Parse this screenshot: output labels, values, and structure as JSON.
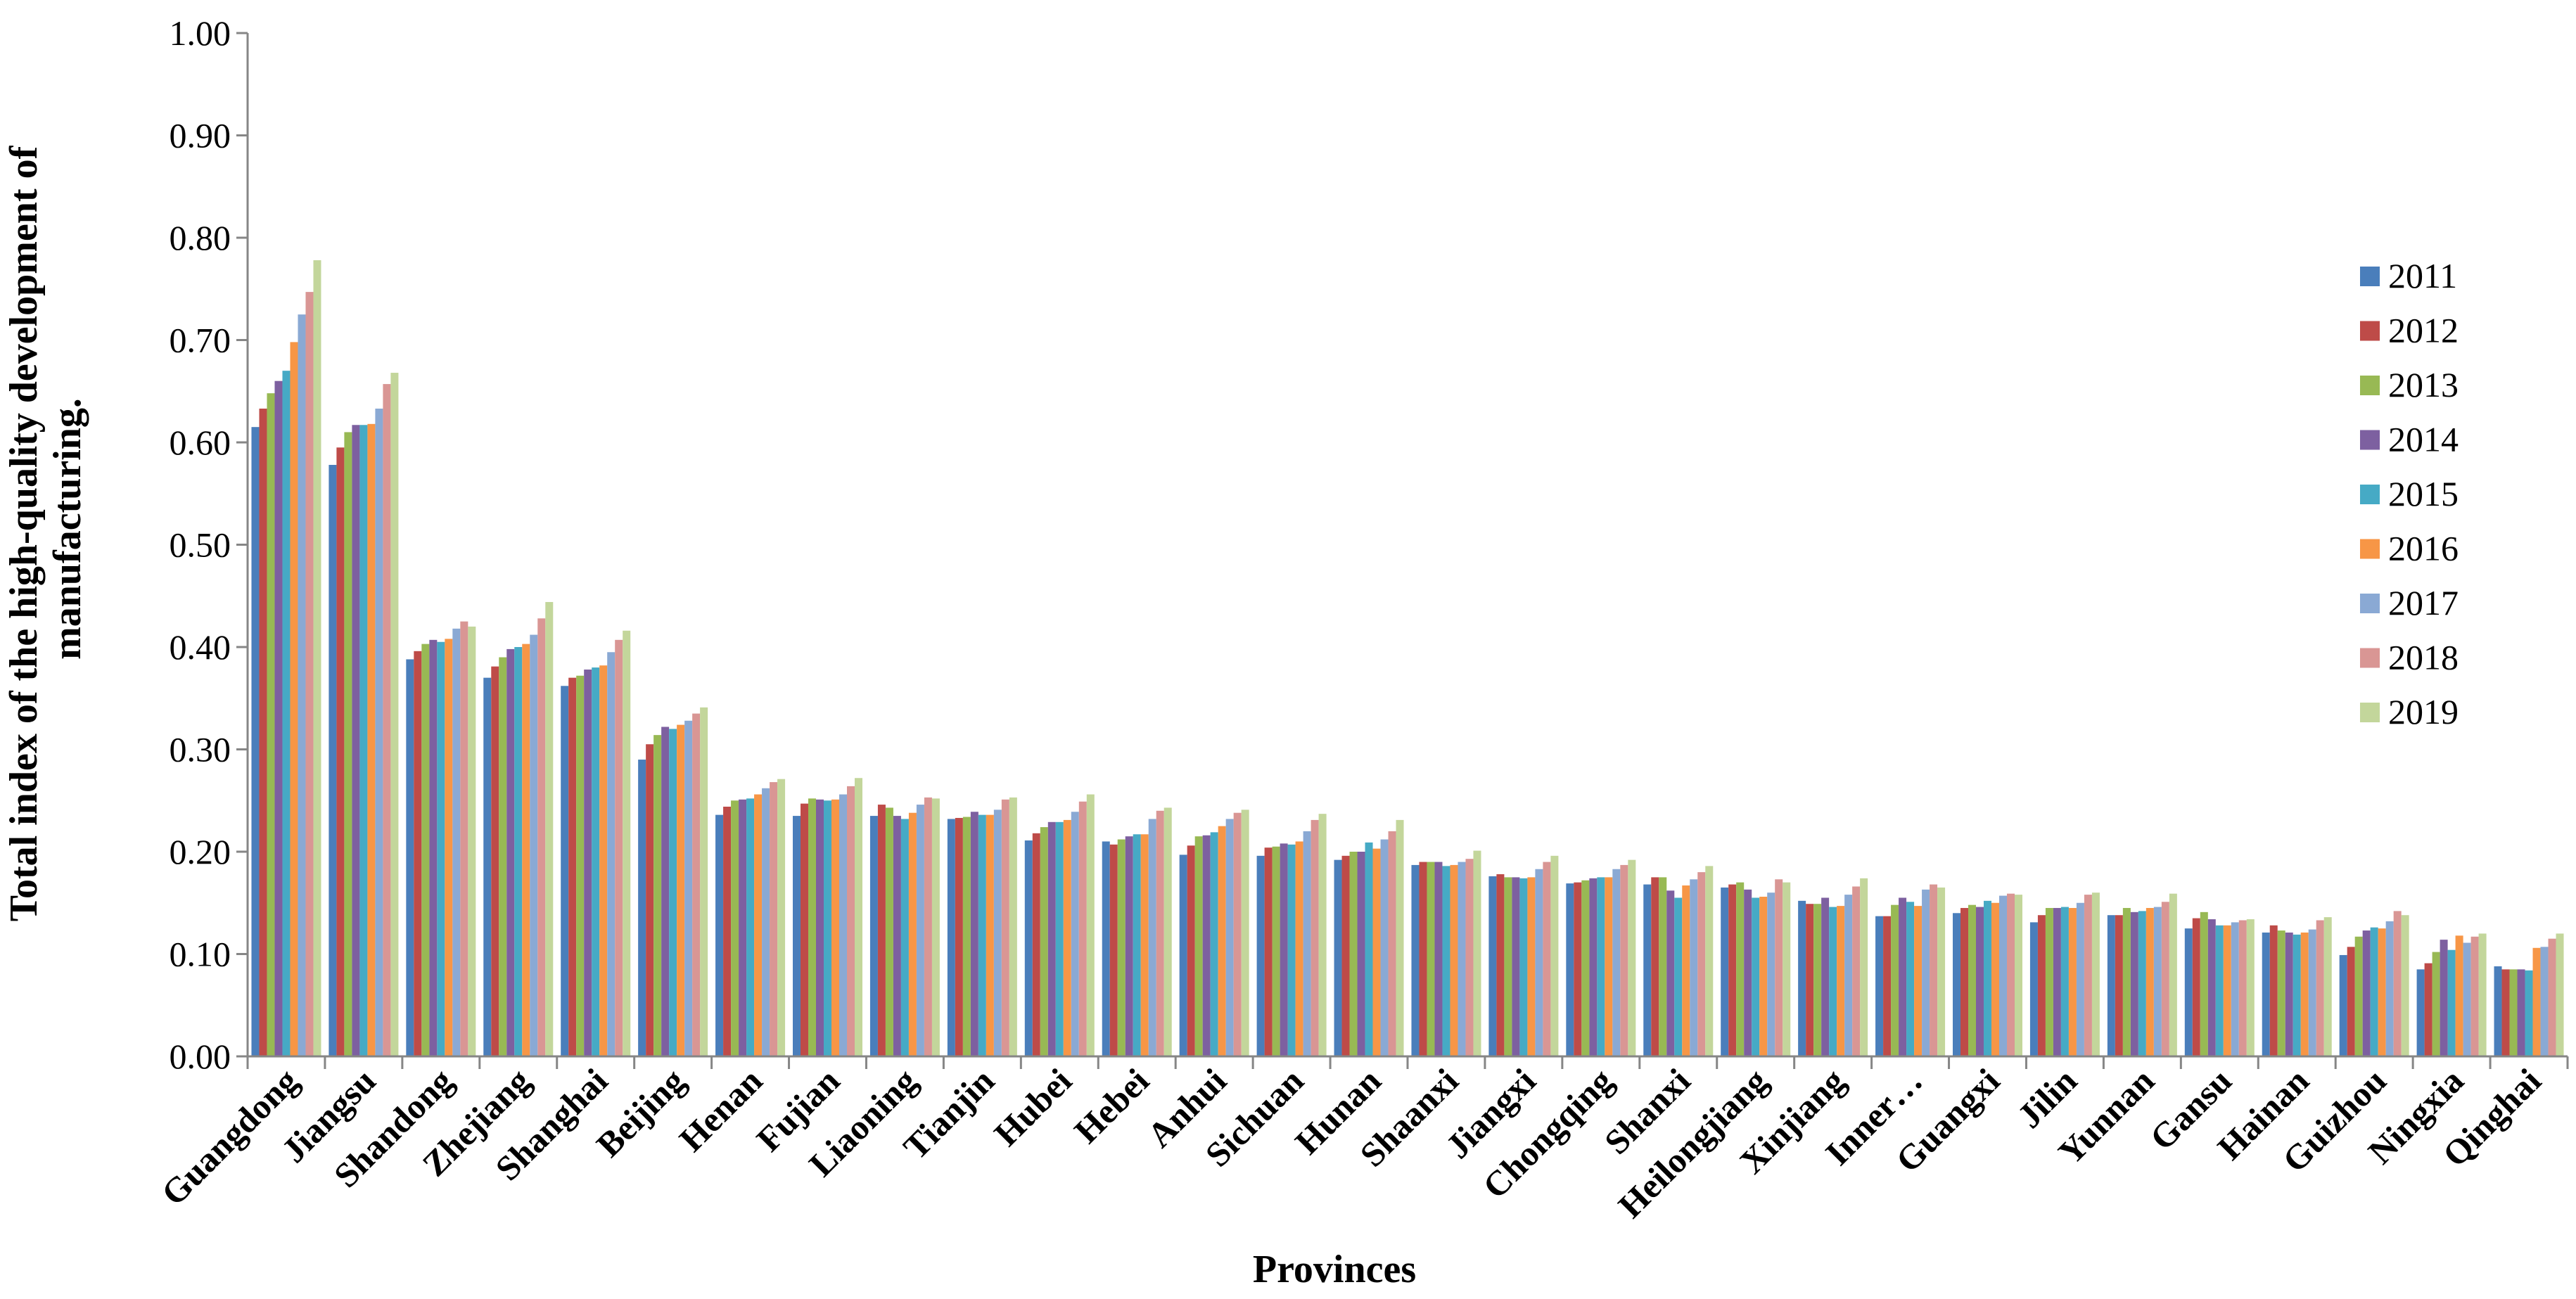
{
  "chart_data": {
    "type": "bar",
    "title": "",
    "xlabel": "Provinces",
    "ylabel_lines": [
      "Total index of the  high-quality development of",
      "manufacturing."
    ],
    "ylim": [
      0,
      1
    ],
    "yticks": [
      "0.00",
      "0.10",
      "0.20",
      "0.30",
      "0.40",
      "0.50",
      "0.60",
      "0.70",
      "0.80",
      "0.90",
      "1.00"
    ],
    "grid": false,
    "legend_position": "right",
    "categories": [
      "Guangdong",
      "Jiangsu",
      "Shandong",
      "Zhejiang",
      "Shanghai",
      "Beijing",
      "Henan",
      "Fujian",
      "Liaoning",
      "Tianjin",
      "Hubei",
      "Hebei",
      "Anhui",
      "Sichuan",
      "Hunan",
      "Shaanxi",
      "Jiangxi",
      "Chongqing",
      "Shanxi",
      "Heilongjiang",
      "Xinjiang",
      "Inner…",
      "Guangxi",
      "Jilin",
      "Yunnan",
      "Gansu",
      "Hainan",
      "Guizhou",
      "Ningxia",
      "Qinghai"
    ],
    "series": [
      {
        "name": "2011",
        "color": "#4a7ebb",
        "values": [
          0.615,
          0.578,
          0.388,
          0.37,
          0.362,
          0.29,
          0.236,
          0.235,
          0.235,
          0.232,
          0.211,
          0.21,
          0.197,
          0.196,
          0.192,
          0.187,
          0.176,
          0.169,
          0.168,
          0.165,
          0.152,
          0.137,
          0.14,
          0.131,
          0.138,
          0.125,
          0.121,
          0.099,
          0.085,
          0.088
        ]
      },
      {
        "name": "2012",
        "color": "#be4b48",
        "values": [
          0.633,
          0.595,
          0.396,
          0.381,
          0.37,
          0.305,
          0.244,
          0.247,
          0.246,
          0.233,
          0.218,
          0.207,
          0.206,
          0.204,
          0.196,
          0.19,
          0.178,
          0.17,
          0.175,
          0.168,
          0.149,
          0.137,
          0.145,
          0.138,
          0.138,
          0.135,
          0.128,
          0.107,
          0.091,
          0.085
        ]
      },
      {
        "name": "2013",
        "color": "#98b954",
        "values": [
          0.648,
          0.61,
          0.403,
          0.39,
          0.372,
          0.314,
          0.25,
          0.252,
          0.243,
          0.234,
          0.224,
          0.212,
          0.215,
          0.205,
          0.2,
          0.19,
          0.175,
          0.172,
          0.175,
          0.17,
          0.149,
          0.148,
          0.148,
          0.145,
          0.145,
          0.141,
          0.123,
          0.117,
          0.102,
          0.085
        ]
      },
      {
        "name": "2014",
        "color": "#7d60a0",
        "values": [
          0.66,
          0.617,
          0.407,
          0.398,
          0.378,
          0.322,
          0.251,
          0.251,
          0.235,
          0.239,
          0.229,
          0.215,
          0.216,
          0.208,
          0.2,
          0.19,
          0.175,
          0.174,
          0.162,
          0.163,
          0.155,
          0.155,
          0.146,
          0.145,
          0.141,
          0.134,
          0.121,
          0.123,
          0.114,
          0.085
        ]
      },
      {
        "name": "2015",
        "color": "#46aac5",
        "values": [
          0.67,
          0.617,
          0.405,
          0.4,
          0.38,
          0.32,
          0.252,
          0.25,
          0.232,
          0.236,
          0.229,
          0.217,
          0.219,
          0.207,
          0.209,
          0.186,
          0.174,
          0.175,
          0.155,
          0.155,
          0.146,
          0.151,
          0.152,
          0.146,
          0.142,
          0.128,
          0.119,
          0.126,
          0.104,
          0.084
        ]
      },
      {
        "name": "2016",
        "color": "#f79646",
        "values": [
          0.698,
          0.618,
          0.408,
          0.403,
          0.382,
          0.324,
          0.256,
          0.251,
          0.238,
          0.236,
          0.231,
          0.217,
          0.225,
          0.21,
          0.203,
          0.187,
          0.175,
          0.175,
          0.167,
          0.156,
          0.147,
          0.147,
          0.15,
          0.145,
          0.145,
          0.128,
          0.121,
          0.125,
          0.118,
          0.106
        ]
      },
      {
        "name": "2017",
        "color": "#8aa9d4",
        "values": [
          0.725,
          0.633,
          0.418,
          0.412,
          0.395,
          0.328,
          0.262,
          0.256,
          0.246,
          0.241,
          0.239,
          0.232,
          0.232,
          0.22,
          0.212,
          0.19,
          0.183,
          0.183,
          0.173,
          0.16,
          0.158,
          0.163,
          0.157,
          0.15,
          0.146,
          0.131,
          0.124,
          0.132,
          0.111,
          0.107
        ]
      },
      {
        "name": "2018",
        "color": "#d99694",
        "values": [
          0.747,
          0.657,
          0.425,
          0.428,
          0.407,
          0.335,
          0.268,
          0.264,
          0.253,
          0.251,
          0.249,
          0.24,
          0.238,
          0.231,
          0.22,
          0.193,
          0.19,
          0.187,
          0.18,
          0.173,
          0.166,
          0.168,
          0.159,
          0.158,
          0.151,
          0.133,
          0.133,
          0.142,
          0.117,
          0.115
        ]
      },
      {
        "name": "2019",
        "color": "#c3d69b",
        "values": [
          0.778,
          0.668,
          0.42,
          0.444,
          0.416,
          0.341,
          0.271,
          0.272,
          0.252,
          0.253,
          0.256,
          0.243,
          0.241,
          0.237,
          0.231,
          0.201,
          0.196,
          0.192,
          0.186,
          0.17,
          0.174,
          0.165,
          0.158,
          0.16,
          0.159,
          0.134,
          0.136,
          0.138,
          0.12,
          0.12
        ]
      }
    ]
  }
}
